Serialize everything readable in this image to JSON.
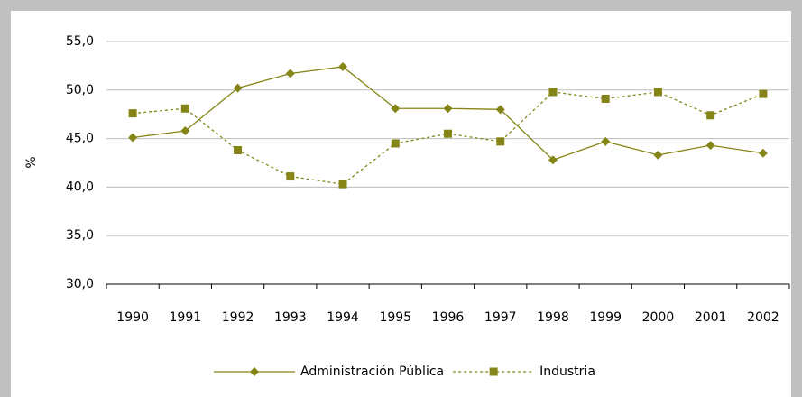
{
  "chart_data": {
    "type": "line",
    "ylabel": "%",
    "categories": [
      "1990",
      "1991",
      "1992",
      "1993",
      "1994",
      "1995",
      "1996",
      "1997",
      "1998",
      "1999",
      "2000",
      "2001",
      "2002"
    ],
    "series": [
      {
        "name": "Administración Pública",
        "color": "#858517",
        "marker": "diamond",
        "line_style": "solid",
        "values": [
          45.1,
          45.8,
          50.2,
          51.7,
          52.4,
          48.1,
          48.1,
          48.0,
          42.8,
          44.7,
          43.3,
          44.3,
          43.5
        ]
      },
      {
        "name": "Industria",
        "color": "#858517",
        "marker": "square",
        "line_style": "dashed",
        "values": [
          47.6,
          48.1,
          43.8,
          41.1,
          40.3,
          44.5,
          45.5,
          44.7,
          49.8,
          49.1,
          49.8,
          47.4,
          49.6
        ]
      }
    ],
    "ylim": [
      30,
      55
    ],
    "yticks": [
      {
        "value": 30,
        "label": "30,0"
      },
      {
        "value": 35,
        "label": "35,0"
      },
      {
        "value": 40,
        "label": "40,0"
      },
      {
        "value": 45,
        "label": "45,0"
      },
      {
        "value": 50,
        "label": "50,0"
      },
      {
        "value": 55,
        "label": "55,0"
      }
    ],
    "grid": true,
    "legend": "bottom"
  }
}
